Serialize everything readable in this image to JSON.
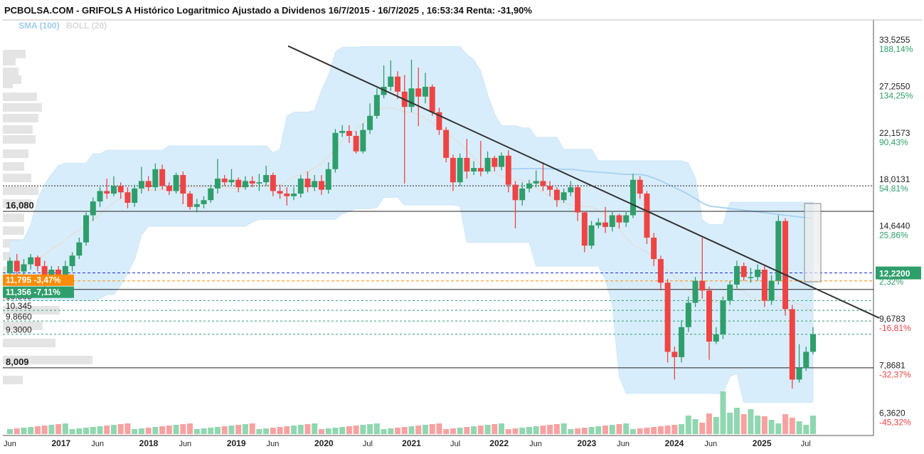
{
  "title": "PCBOLSA.COM - GRIFOLS A Histórico Logaritmico Ajustado a Dividenos 16/7/2015 - 16/7/2025 , 16:53:34 Renta: -31,90%",
  "indicators": {
    "sma": "SMA (100)",
    "boll": "BOLL (20)"
  },
  "colors": {
    "up": "#2e9e6b",
    "down": "#ef4444",
    "band": "#d5ecfb",
    "sma": "#a9d3f0",
    "orange": "#ff8c00",
    "green_tag": "#2e9e6b"
  },
  "chart_data": {
    "type": "candlestick",
    "scale": "log",
    "y_range": [
      6.0,
      37.0
    ],
    "x_range": [
      "2016-06",
      "2025-08"
    ],
    "right_axis": [
      {
        "price": "33,5255",
        "pct": "188,14%",
        "v": 33.5255
      },
      {
        "price": "27,2550",
        "pct": "134,25%",
        "v": 27.255
      },
      {
        "price": "22,1573",
        "pct": "90,43%",
        "v": 22.1573
      },
      {
        "price": "18,0131",
        "pct": "54,81%",
        "v": 18.0131
      },
      {
        "price": "14,6440",
        "pct": "25,86%",
        "v": 14.644
      },
      {
        "price": "",
        "pct": "2,32%",
        "v": 11.905
      },
      {
        "price": "9,6783",
        "pct": "-16,81%",
        "v": 9.6783
      },
      {
        "price": "7,8681",
        "pct": "-32,37%",
        "v": 7.8681
      },
      {
        "price": "6,3620",
        "pct": "-45,32%",
        "v": 6.362
      }
    ],
    "current_price": {
      "label": "12,2200",
      "v": 12.22
    },
    "x_ticks": [
      {
        "label": "Jun",
        "d": "2016-06",
        "year": false
      },
      {
        "label": "2017",
        "d": "2017-01",
        "year": true
      },
      {
        "label": "Jun",
        "d": "2017-06",
        "year": false
      },
      {
        "label": "2018",
        "d": "2018-01",
        "year": true
      },
      {
        "label": "Jun",
        "d": "2018-06",
        "year": false
      },
      {
        "label": "2019",
        "d": "2019-01",
        "year": true
      },
      {
        "label": "Jun",
        "d": "2019-06",
        "year": false
      },
      {
        "label": "2020",
        "d": "2020-01",
        "year": true
      },
      {
        "label": "Jul",
        "d": "2020-07",
        "year": false
      },
      {
        "label": "2021",
        "d": "2021-01",
        "year": true
      },
      {
        "label": "Jul",
        "d": "2021-07",
        "year": false
      },
      {
        "label": "2022",
        "d": "2022-01",
        "year": true
      },
      {
        "label": "Jun",
        "d": "2022-06",
        "year": false
      },
      {
        "label": "2023",
        "d": "2023-01",
        "year": true
      },
      {
        "label": "Jun",
        "d": "2023-06",
        "year": false
      },
      {
        "label": "2024",
        "d": "2024-01",
        "year": true
      },
      {
        "label": "Jun",
        "d": "2024-06",
        "year": false
      },
      {
        "label": "2025",
        "d": "2025-01",
        "year": true
      },
      {
        "label": "Jul",
        "d": "2025-07",
        "year": false
      }
    ],
    "support_lines": [
      {
        "label": "16,080",
        "v": 16.08
      },
      {
        "label": "11,356",
        "v": 11.356
      },
      {
        "label": "8,009",
        "v": 8.009
      }
    ],
    "dashed_levels": [
      {
        "label": "10.805",
        "v": 10.805
      },
      {
        "label": "10.345",
        "v": 10.345
      },
      {
        "label": "9.8660",
        "v": 9.866
      },
      {
        "label": "9.3000",
        "v": 9.3
      }
    ],
    "dotted_level": 18.0131,
    "price_tags": [
      {
        "label": "11,795 -3,47%",
        "v": 11.795
      },
      {
        "label": "11,356 -7,11%",
        "v": 11.356
      }
    ],
    "trendline": {
      "from": [
        "2019-12",
        34.0
      ],
      "to": [
        "2025-08",
        10.0
      ]
    },
    "candles": [
      [
        "2016-06",
        12.2,
        12.9,
        11.6,
        13.1
      ],
      [
        "2016-07",
        12.9,
        12.3,
        12.0,
        13.3
      ],
      [
        "2016-08",
        12.3,
        12.7,
        11.8,
        13.0
      ],
      [
        "2016-09",
        12.7,
        13.1,
        12.4,
        13.3
      ],
      [
        "2016-10",
        13.1,
        12.6,
        12.3,
        13.2
      ],
      [
        "2016-11",
        12.6,
        11.9,
        11.5,
        12.9
      ],
      [
        "2016-12",
        11.9,
        12.4,
        11.6,
        12.6
      ],
      [
        "2017-01",
        12.4,
        12.1,
        11.8,
        12.6
      ],
      [
        "2017-02",
        12.1,
        12.6,
        11.8,
        12.9
      ],
      [
        "2017-03",
        12.6,
        13.2,
        12.3,
        13.4
      ],
      [
        "2017-04",
        13.2,
        14.0,
        13.0,
        14.3
      ],
      [
        "2017-05",
        14.0,
        15.8,
        13.8,
        16.0
      ],
      [
        "2017-06",
        15.8,
        16.8,
        15.4,
        17.1
      ],
      [
        "2017-07",
        16.8,
        17.6,
        16.4,
        17.9
      ],
      [
        "2017-08",
        17.6,
        17.4,
        17.0,
        18.6
      ],
      [
        "2017-09",
        17.4,
        18.0,
        17.2,
        18.8
      ],
      [
        "2017-10",
        18.0,
        17.5,
        17.0,
        18.3
      ],
      [
        "2017-11",
        17.5,
        16.7,
        16.3,
        17.9
      ],
      [
        "2017-12",
        16.7,
        17.8,
        16.4,
        18.1
      ],
      [
        "2017-13",
        17.8,
        18.4,
        17.4,
        19.6
      ],
      [
        "2017-14",
        18.4,
        17.9,
        17.6,
        18.8
      ],
      [
        "2018-01",
        17.9,
        19.4,
        17.6,
        19.9
      ],
      [
        "2018-02",
        19.4,
        18.0,
        17.7,
        19.8
      ],
      [
        "2018-03",
        18.0,
        17.6,
        17.3,
        18.3
      ],
      [
        "2018-04",
        17.6,
        18.9,
        17.4,
        19.1
      ],
      [
        "2018-05",
        18.9,
        17.4,
        16.6,
        19.2
      ],
      [
        "2018-06",
        17.4,
        16.4,
        16.2,
        17.6
      ],
      [
        "2018-07",
        16.4,
        16.6,
        16.0,
        17.0
      ],
      [
        "2018-08",
        16.6,
        16.9,
        16.3,
        17.2
      ],
      [
        "2018-09",
        16.9,
        17.8,
        16.7,
        18.1
      ],
      [
        "2018-10",
        17.8,
        18.6,
        17.4,
        20.3
      ],
      [
        "2018-11",
        18.6,
        18.3,
        18.0,
        18.9
      ],
      [
        "2018-12",
        18.3,
        18.5,
        18.0,
        19.4
      ],
      [
        "2019-01",
        18.5,
        17.9,
        17.5,
        18.7
      ],
      [
        "2019-02",
        17.9,
        18.4,
        17.7,
        18.8
      ],
      [
        "2019-03",
        18.4,
        18.2,
        17.9,
        18.8
      ],
      [
        "2019-04",
        18.2,
        18.3,
        17.6,
        19.0
      ],
      [
        "2019-05",
        18.3,
        18.9,
        18.0,
        19.7
      ],
      [
        "2019-06",
        18.9,
        17.6,
        17.2,
        19.1
      ],
      [
        "2019-07",
        17.6,
        17.4,
        17.0,
        18.1
      ],
      [
        "2019-08",
        17.4,
        17.2,
        16.5,
        17.9
      ],
      [
        "2019-09",
        17.2,
        17.4,
        16.9,
        17.9
      ],
      [
        "2019-10",
        17.4,
        18.6,
        17.1,
        18.9
      ],
      [
        "2019-11",
        18.6,
        17.9,
        17.5,
        19.2
      ],
      [
        "2019-12",
        17.9,
        18.4,
        17.6,
        18.9
      ],
      [
        "2019-13",
        18.4,
        17.7,
        17.3,
        18.9
      ],
      [
        "2019-14",
        17.7,
        19.4,
        17.4,
        20.0
      ],
      [
        "2019-15",
        19.4,
        22.8,
        19.1,
        23.2
      ],
      [
        "2019-16",
        22.8,
        23.0,
        22.4,
        23.6
      ],
      [
        "2020-01",
        23.0,
        22.5,
        21.8,
        23.6
      ],
      [
        "2020-02",
        22.5,
        21.0,
        20.8,
        23.0
      ],
      [
        "2020-03",
        21.0,
        23.1,
        20.8,
        23.8
      ],
      [
        "2020-04",
        23.1,
        24.6,
        22.7,
        26.0
      ],
      [
        "2020-05",
        24.6,
        27.0,
        24.3,
        27.8
      ],
      [
        "2020-06",
        27.0,
        28.0,
        26.6,
        30.8
      ],
      [
        "2020-07",
        28.0,
        29.3,
        27.5,
        31.5
      ],
      [
        "2020-08",
        29.3,
        27.4,
        26.5,
        30.0
      ],
      [
        "2020-09",
        27.4,
        25.6,
        18.2,
        29.5
      ],
      [
        "2020-10",
        25.6,
        27.8,
        25.0,
        31.6
      ],
      [
        "2020-11",
        27.8,
        26.8,
        23.5,
        30.5
      ],
      [
        "2020-12",
        26.8,
        28.0,
        26.0,
        29.8
      ],
      [
        "2021-01",
        28.0,
        25.0,
        24.6,
        28.3
      ],
      [
        "2021-02",
        25.0,
        23.1,
        22.6,
        25.5
      ],
      [
        "2021-03",
        23.1,
        20.4,
        20.0,
        23.4
      ],
      [
        "2021-04",
        20.4,
        18.3,
        17.6,
        20.7
      ],
      [
        "2021-05",
        18.3,
        20.4,
        18.0,
        20.8
      ],
      [
        "2021-06",
        20.4,
        19.2,
        18.6,
        22.2
      ],
      [
        "2021-07",
        19.2,
        19.5,
        18.9,
        20.1
      ],
      [
        "2021-08",
        19.5,
        19.2,
        18.8,
        22.0
      ],
      [
        "2021-09",
        19.2,
        20.4,
        19.0,
        21.0
      ],
      [
        "2021-10",
        20.4,
        19.6,
        19.2,
        20.6
      ],
      [
        "2021-11",
        19.6,
        20.6,
        19.3,
        20.9
      ],
      [
        "2021-12",
        20.6,
        18.1,
        17.5,
        21.1
      ],
      [
        "2022-01",
        18.1,
        16.9,
        14.9,
        18.4
      ],
      [
        "2022-02",
        16.9,
        17.8,
        16.5,
        18.3
      ],
      [
        "2022-03",
        17.8,
        18.2,
        17.5,
        18.5
      ],
      [
        "2022-04",
        18.2,
        18.4,
        17.9,
        19.3
      ],
      [
        "2022-05",
        18.4,
        18.0,
        17.6,
        20.0
      ],
      [
        "2022-06",
        18.0,
        17.7,
        17.2,
        18.4
      ],
      [
        "2022-07",
        17.7,
        16.9,
        16.4,
        17.9
      ],
      [
        "2022-08",
        16.9,
        17.5,
        16.7,
        17.8
      ],
      [
        "2022-09",
        17.5,
        17.9,
        17.2,
        18.4
      ],
      [
        "2022-10",
        17.9,
        16.0,
        15.4,
        18.1
      ],
      [
        "2022-11",
        16.0,
        13.8,
        13.4,
        16.1
      ],
      [
        "2022-12",
        13.8,
        15.1,
        13.6,
        15.4
      ],
      [
        "2022-13",
        15.1,
        15.3,
        14.9,
        15.6
      ],
      [
        "2022-14",
        15.3,
        15.0,
        14.6,
        16.4
      ],
      [
        "2022-15",
        15.0,
        15.8,
        14.7,
        16.1
      ],
      [
        "2022-16",
        15.8,
        15.3,
        14.9,
        15.9
      ],
      [
        "2022-17",
        15.3,
        15.8,
        15.0,
        16.1
      ],
      [
        "2022-18",
        15.8,
        18.5,
        15.6,
        19.0
      ],
      [
        "2022-19",
        18.5,
        17.4,
        17.0,
        18.8
      ],
      [
        "2022-20",
        17.4,
        14.3,
        13.9,
        17.6
      ],
      [
        "2022-21",
        14.3,
        13.0,
        12.6,
        14.6
      ],
      [
        "2022-22",
        13.0,
        11.7,
        11.3,
        13.2
      ],
      [
        "2022-23",
        11.7,
        8.6,
        8.2,
        11.9
      ],
      [
        "2022-24",
        8.6,
        8.4,
        7.6,
        8.8
      ],
      [
        "2022-25",
        8.4,
        9.6,
        8.2,
        9.9
      ],
      [
        "2022-26",
        9.6,
        10.7,
        9.4,
        11.0
      ],
      [
        "2022-27",
        10.7,
        11.8,
        10.5,
        12.0
      ],
      [
        "2022-28",
        11.8,
        11.3,
        10.9,
        14.3
      ],
      [
        "2022-29",
        11.3,
        9.0,
        8.3,
        11.5
      ],
      [
        "2022-30",
        9.0,
        9.3,
        8.9,
        9.6
      ],
      [
        "2022-31",
        9.3,
        10.8,
        9.1,
        11.0
      ],
      [
        "2022-32",
        10.8,
        11.6,
        10.6,
        11.8
      ],
      [
        "2022-33",
        11.6,
        12.6,
        11.4,
        12.9
      ],
      [
        "2022-34",
        12.6,
        12.0,
        11.8,
        12.8
      ],
      [
        "2022-35",
        12.0,
        12.0,
        11.7,
        12.5
      ],
      [
        "2022-36",
        12.0,
        12.4,
        11.8,
        12.7
      ],
      [
        "2022-37",
        12.4,
        10.8,
        10.5,
        12.6
      ],
      [
        "2022-38",
        10.8,
        11.8,
        10.6,
        12.1
      ],
      [
        "2022-39",
        11.8,
        15.4,
        11.6,
        15.8
      ],
      [
        "2022-40",
        15.4,
        10.4,
        10.1,
        15.6
      ],
      [
        "2022-41",
        10.4,
        7.6,
        7.3,
        10.6
      ],
      [
        "2022-42",
        7.6,
        8.0,
        7.5,
        8.9
      ],
      [
        "2022-43",
        8.0,
        8.6,
        7.9,
        8.8
      ],
      [
        "2022-44",
        8.6,
        9.3,
        8.5,
        9.6
      ]
    ]
  }
}
